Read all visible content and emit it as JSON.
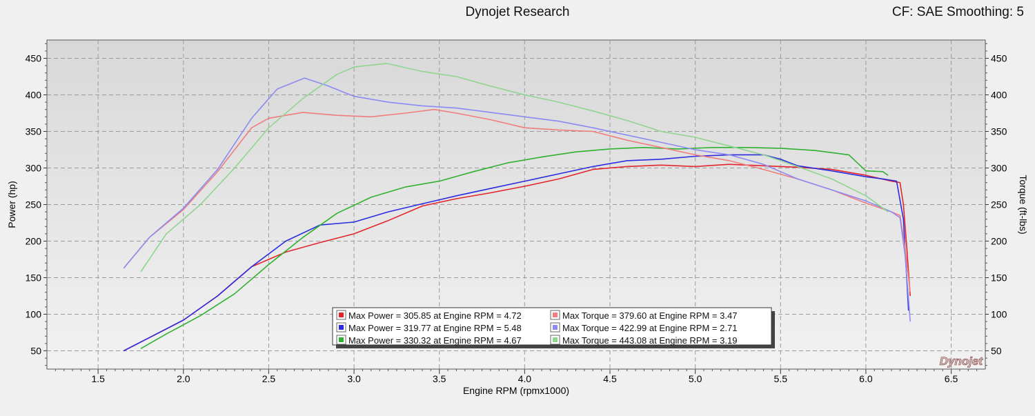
{
  "header": {
    "title": "Dynojet Research",
    "right_text": "CF: SAE Smoothing: 5"
  },
  "logo_text": "Dynojet",
  "colors": {
    "plot_bg_top": "#d8d8d8",
    "plot_bg_bottom": "#f2f2f2",
    "grid": "#9a9a9a",
    "red": "#e3242b",
    "blue": "#2a2ae0",
    "green": "#2fb02f",
    "light_red": "#f07d7d",
    "light_blue": "#8a8af2",
    "light_green": "#8fd48f"
  },
  "chart_data": {
    "type": "line",
    "xlabel": "Engine RPM (rpmx1000)",
    "ylabel_left": "Power (hp)",
    "ylabel_right": "Torque (ft-lbs)",
    "xlim": [
      1.2,
      6.7
    ],
    "ylim": [
      25,
      475
    ],
    "x_ticks": [
      "1.5",
      "2.0",
      "2.5",
      "3.0",
      "3.5",
      "4.0",
      "4.5",
      "5.0",
      "5.5",
      "6.0",
      "6.5"
    ],
    "y_ticks": [
      "50",
      "100",
      "150",
      "200",
      "250",
      "300",
      "350",
      "400",
      "450"
    ],
    "grid": true,
    "legend_position": "bottom-center",
    "legend": [
      "Max Power = 305.85 at Engine RPM = 4.72",
      "Max Torque = 379.60 at Engine RPM = 3.47",
      "Max Power = 319.77 at Engine RPM = 5.48",
      "Max Torque = 422.99 at Engine RPM = 2.71",
      "Max Power = 330.32 at Engine RPM = 4.67",
      "Max Torque = 443.08 at Engine RPM = 3.19"
    ],
    "series": [
      {
        "kind": "power",
        "color": "#e3242b",
        "points": [
          [
            1.65,
            50
          ],
          [
            1.8,
            68
          ],
          [
            2.0,
            92
          ],
          [
            2.2,
            125
          ],
          [
            2.4,
            165
          ],
          [
            2.6,
            185
          ],
          [
            2.8,
            198
          ],
          [
            3.0,
            210
          ],
          [
            3.2,
            228
          ],
          [
            3.4,
            248
          ],
          [
            3.6,
            258
          ],
          [
            3.8,
            266
          ],
          [
            4.0,
            275
          ],
          [
            4.2,
            285
          ],
          [
            4.4,
            298
          ],
          [
            4.6,
            302
          ],
          [
            4.8,
            304
          ],
          [
            5.0,
            302
          ],
          [
            5.2,
            305
          ],
          [
            5.4,
            303
          ],
          [
            5.6,
            301
          ],
          [
            5.8,
            298
          ],
          [
            6.0,
            290
          ],
          [
            6.15,
            282
          ],
          [
            6.2,
            280
          ],
          [
            6.22,
            250
          ],
          [
            6.24,
            190
          ],
          [
            6.26,
            125
          ]
        ]
      },
      {
        "kind": "power",
        "color": "#2a2ae0",
        "points": [
          [
            1.65,
            50
          ],
          [
            1.8,
            68
          ],
          [
            2.0,
            92
          ],
          [
            2.2,
            125
          ],
          [
            2.4,
            165
          ],
          [
            2.6,
            200
          ],
          [
            2.8,
            222
          ],
          [
            3.0,
            226
          ],
          [
            3.2,
            240
          ],
          [
            3.4,
            251
          ],
          [
            3.6,
            262
          ],
          [
            3.8,
            272
          ],
          [
            4.0,
            282
          ],
          [
            4.2,
            292
          ],
          [
            4.4,
            302
          ],
          [
            4.6,
            310
          ],
          [
            4.8,
            312
          ],
          [
            5.0,
            316
          ],
          [
            5.2,
            318
          ],
          [
            5.4,
            318
          ],
          [
            5.5,
            312
          ],
          [
            5.6,
            303
          ],
          [
            5.8,
            296
          ],
          [
            6.0,
            288
          ],
          [
            6.1,
            285
          ],
          [
            6.18,
            282
          ],
          [
            6.22,
            230
          ],
          [
            6.25,
            105
          ]
        ]
      },
      {
        "kind": "power",
        "color": "#2fb02f",
        "points": [
          [
            1.75,
            53
          ],
          [
            1.9,
            73
          ],
          [
            2.1,
            98
          ],
          [
            2.3,
            128
          ],
          [
            2.5,
            168
          ],
          [
            2.7,
            205
          ],
          [
            2.9,
            238
          ],
          [
            3.1,
            260
          ],
          [
            3.3,
            274
          ],
          [
            3.5,
            282
          ],
          [
            3.7,
            295
          ],
          [
            3.9,
            307
          ],
          [
            4.1,
            315
          ],
          [
            4.3,
            322
          ],
          [
            4.5,
            326
          ],
          [
            4.7,
            328
          ],
          [
            4.9,
            326
          ],
          [
            5.1,
            328
          ],
          [
            5.3,
            328
          ],
          [
            5.5,
            327
          ],
          [
            5.7,
            324
          ],
          [
            5.9,
            318
          ],
          [
            6.0,
            296
          ],
          [
            6.1,
            295
          ],
          [
            6.13,
            290
          ]
        ]
      },
      {
        "kind": "torque",
        "color": "#f07d7d",
        "points": [
          [
            1.65,
            163
          ],
          [
            1.8,
            205
          ],
          [
            2.0,
            243
          ],
          [
            2.2,
            295
          ],
          [
            2.4,
            355
          ],
          [
            2.5,
            368
          ],
          [
            2.7,
            376
          ],
          [
            2.9,
            372
          ],
          [
            3.1,
            370
          ],
          [
            3.3,
            375
          ],
          [
            3.47,
            380
          ],
          [
            3.6,
            375
          ],
          [
            3.8,
            366
          ],
          [
            4.0,
            355
          ],
          [
            4.2,
            352
          ],
          [
            4.4,
            350
          ],
          [
            4.6,
            338
          ],
          [
            4.8,
            328
          ],
          [
            5.0,
            318
          ],
          [
            5.2,
            310
          ],
          [
            5.4,
            298
          ],
          [
            5.6,
            285
          ],
          [
            5.8,
            270
          ],
          [
            6.0,
            252
          ],
          [
            6.15,
            240
          ],
          [
            6.2,
            235
          ],
          [
            6.23,
            190
          ],
          [
            6.26,
            130
          ]
        ]
      },
      {
        "kind": "torque",
        "color": "#8a8af2",
        "points": [
          [
            1.65,
            163
          ],
          [
            1.8,
            205
          ],
          [
            2.0,
            245
          ],
          [
            2.2,
            298
          ],
          [
            2.4,
            368
          ],
          [
            2.55,
            408
          ],
          [
            2.71,
            423
          ],
          [
            2.85,
            412
          ],
          [
            3.0,
            398
          ],
          [
            3.2,
            390
          ],
          [
            3.4,
            385
          ],
          [
            3.6,
            382
          ],
          [
            3.8,
            376
          ],
          [
            4.0,
            370
          ],
          [
            4.2,
            364
          ],
          [
            4.4,
            355
          ],
          [
            4.6,
            345
          ],
          [
            4.8,
            335
          ],
          [
            5.0,
            325
          ],
          [
            5.2,
            318
          ],
          [
            5.4,
            305
          ],
          [
            5.6,
            285
          ],
          [
            5.8,
            270
          ],
          [
            6.0,
            255
          ],
          [
            6.15,
            240
          ],
          [
            6.2,
            232
          ],
          [
            6.23,
            180
          ],
          [
            6.26,
            90
          ]
        ]
      },
      {
        "kind": "torque",
        "color": "#8fd48f",
        "points": [
          [
            1.75,
            158
          ],
          [
            1.9,
            210
          ],
          [
            2.1,
            250
          ],
          [
            2.3,
            300
          ],
          [
            2.5,
            355
          ],
          [
            2.7,
            395
          ],
          [
            2.9,
            428
          ],
          [
            3.0,
            438
          ],
          [
            3.19,
            443
          ],
          [
            3.4,
            432
          ],
          [
            3.6,
            425
          ],
          [
            3.8,
            412
          ],
          [
            4.0,
            400
          ],
          [
            4.2,
            390
          ],
          [
            4.4,
            378
          ],
          [
            4.6,
            365
          ],
          [
            4.8,
            350
          ],
          [
            5.0,
            342
          ],
          [
            5.2,
            330
          ],
          [
            5.4,
            318
          ],
          [
            5.6,
            302
          ],
          [
            5.8,
            285
          ],
          [
            6.0,
            262
          ],
          [
            6.13,
            240
          ]
        ]
      }
    ]
  }
}
